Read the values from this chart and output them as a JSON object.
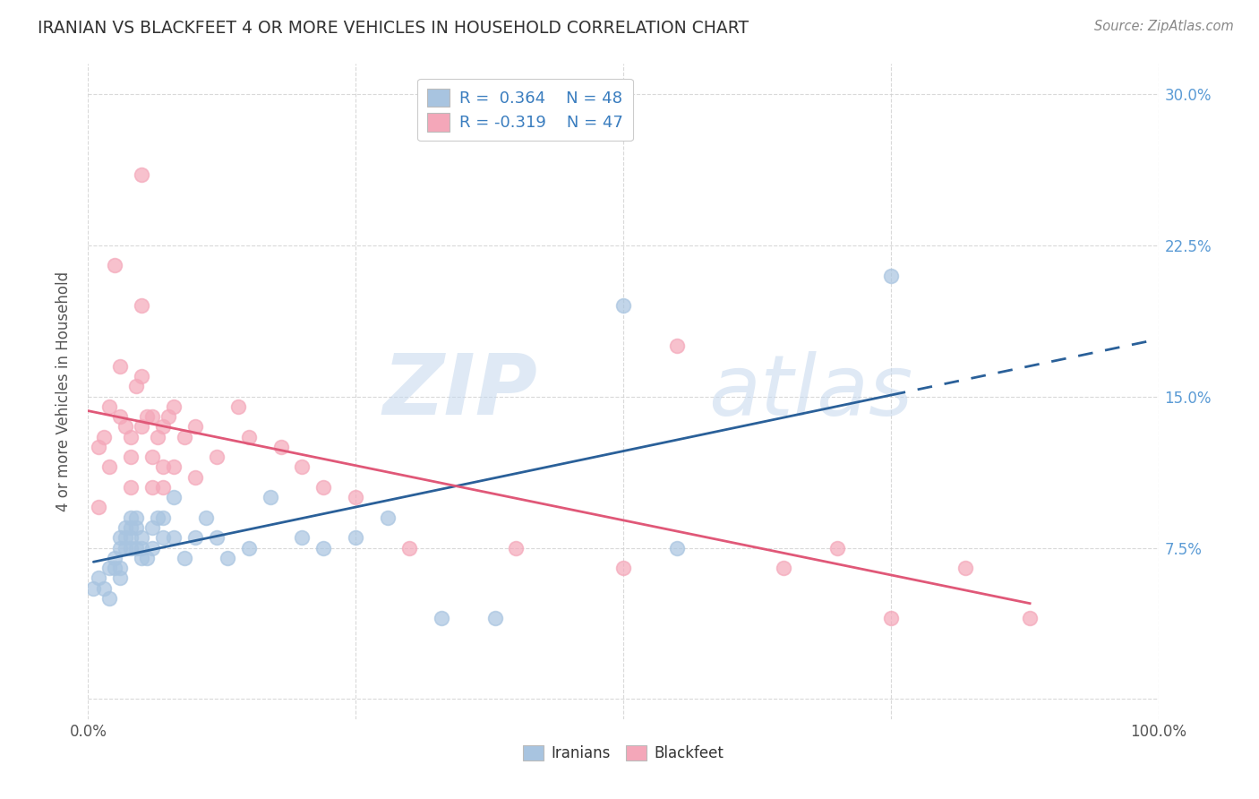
{
  "title": "IRANIAN VS BLACKFEET 4 OR MORE VEHICLES IN HOUSEHOLD CORRELATION CHART",
  "source": "Source: ZipAtlas.com",
  "ylabel": "4 or more Vehicles in Household",
  "legend_iranians": "Iranians",
  "legend_blackfeet": "Blackfeet",
  "R_iranians": 0.364,
  "N_iranians": 48,
  "R_blackfeet": -0.319,
  "N_blackfeet": 47,
  "xmin": 0.0,
  "xmax": 1.0,
  "ymin": -0.01,
  "ymax": 0.315,
  "x_ticks": [
    0.0,
    0.25,
    0.5,
    0.75,
    1.0
  ],
  "x_tick_labels": [
    "0.0%",
    "",
    "",
    "",
    "100.0%"
  ],
  "y_ticks": [
    0.0,
    0.075,
    0.15,
    0.225,
    0.3
  ],
  "y_tick_labels": [
    "",
    "7.5%",
    "15.0%",
    "22.5%",
    "30.0%"
  ],
  "watermark_zip": "ZIP",
  "watermark_atlas": "atlas",
  "color_iranians": "#a8c4e0",
  "color_blackfeet": "#f4a7b9",
  "line_color_iranians": "#2a6099",
  "line_color_blackfeet": "#e05878",
  "iranians_x": [
    0.005,
    0.01,
    0.015,
    0.02,
    0.02,
    0.025,
    0.025,
    0.03,
    0.03,
    0.03,
    0.03,
    0.035,
    0.035,
    0.035,
    0.04,
    0.04,
    0.04,
    0.04,
    0.045,
    0.045,
    0.045,
    0.05,
    0.05,
    0.05,
    0.055,
    0.06,
    0.06,
    0.065,
    0.07,
    0.07,
    0.08,
    0.08,
    0.09,
    0.1,
    0.11,
    0.12,
    0.13,
    0.15,
    0.17,
    0.2,
    0.22,
    0.25,
    0.28,
    0.33,
    0.38,
    0.5,
    0.55,
    0.75
  ],
  "iranians_y": [
    0.055,
    0.06,
    0.055,
    0.065,
    0.05,
    0.07,
    0.065,
    0.08,
    0.075,
    0.065,
    0.06,
    0.085,
    0.08,
    0.075,
    0.09,
    0.085,
    0.08,
    0.075,
    0.09,
    0.085,
    0.075,
    0.08,
    0.075,
    0.07,
    0.07,
    0.085,
    0.075,
    0.09,
    0.09,
    0.08,
    0.1,
    0.08,
    0.07,
    0.08,
    0.09,
    0.08,
    0.07,
    0.075,
    0.1,
    0.08,
    0.075,
    0.08,
    0.09,
    0.04,
    0.04,
    0.195,
    0.075,
    0.21
  ],
  "blackfeet_x": [
    0.01,
    0.01,
    0.015,
    0.02,
    0.02,
    0.025,
    0.03,
    0.03,
    0.035,
    0.04,
    0.04,
    0.04,
    0.045,
    0.05,
    0.05,
    0.05,
    0.05,
    0.055,
    0.06,
    0.06,
    0.06,
    0.065,
    0.07,
    0.07,
    0.07,
    0.075,
    0.08,
    0.08,
    0.09,
    0.1,
    0.1,
    0.12,
    0.14,
    0.15,
    0.18,
    0.2,
    0.22,
    0.25,
    0.3,
    0.4,
    0.5,
    0.55,
    0.65,
    0.7,
    0.75,
    0.82,
    0.88
  ],
  "blackfeet_y": [
    0.125,
    0.095,
    0.13,
    0.145,
    0.115,
    0.215,
    0.165,
    0.14,
    0.135,
    0.13,
    0.12,
    0.105,
    0.155,
    0.26,
    0.195,
    0.16,
    0.135,
    0.14,
    0.14,
    0.12,
    0.105,
    0.13,
    0.135,
    0.115,
    0.105,
    0.14,
    0.145,
    0.115,
    0.13,
    0.135,
    0.11,
    0.12,
    0.145,
    0.13,
    0.125,
    0.115,
    0.105,
    0.1,
    0.075,
    0.075,
    0.065,
    0.175,
    0.065,
    0.075,
    0.04,
    0.065,
    0.04
  ],
  "background_color": "#ffffff",
  "grid_color": "#d0d0d0"
}
